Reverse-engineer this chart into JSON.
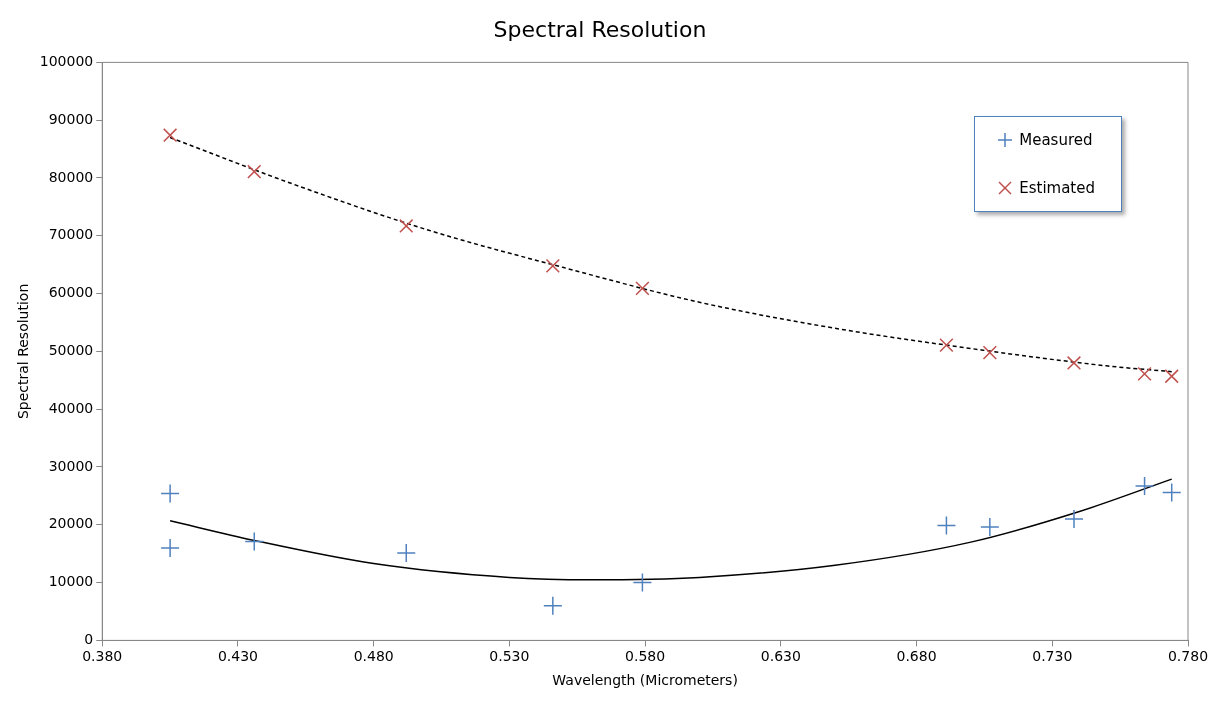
{
  "chart_data": {
    "type": "scatter",
    "title": "Spectral Resolution",
    "xlabel": "Wavelength (Micrometers)",
    "ylabel": "Spectral Resolution",
    "xlim": [
      0.38,
      0.78
    ],
    "xticks": [
      {
        "value": 0.38,
        "label": "0.380"
      },
      {
        "value": 0.43,
        "label": "0.430"
      },
      {
        "value": 0.48,
        "label": "0.480"
      },
      {
        "value": 0.53,
        "label": "0.530"
      },
      {
        "value": 0.58,
        "label": "0.580"
      },
      {
        "value": 0.63,
        "label": "0.630"
      },
      {
        "value": 0.68,
        "label": "0.680"
      },
      {
        "value": 0.73,
        "label": "0.730"
      },
      {
        "value": 0.78,
        "label": "0.780"
      }
    ],
    "ylim": [
      0,
      100000
    ],
    "yticks": [
      0,
      10000,
      20000,
      30000,
      40000,
      50000,
      60000,
      70000,
      80000,
      90000,
      100000
    ],
    "grid": false,
    "legend": "top right",
    "series": [
      {
        "name": "Measured",
        "type": "scatter",
        "marker": "cross",
        "color": "#4f81bd",
        "x": [
          0.405,
          0.405,
          0.436,
          0.492,
          0.546,
          0.579,
          0.691,
          0.707,
          0.738,
          0.764,
          0.774
        ],
        "values": [
          25400,
          16000,
          17100,
          15100,
          6000,
          10000,
          19900,
          19600,
          21000,
          26700,
          25600
        ]
      },
      {
        "name": "Estimated",
        "type": "scatter",
        "marker": "x",
        "color": "#c0504d",
        "x": [
          0.405,
          0.436,
          0.492,
          0.546,
          0.579,
          0.691,
          0.707,
          0.738,
          0.764,
          0.774
        ],
        "values": [
          87400,
          81100,
          71700,
          64800,
          60900,
          51100,
          49800,
          48000,
          46100,
          45700
        ]
      },
      {
        "type": "line",
        "marker": "none",
        "line_style": "solid",
        "color": "#000000",
        "x": [
          0.405,
          0.436,
          0.48,
          0.53,
          0.56,
          0.6,
          0.65,
          0.7,
          0.74,
          0.774
        ],
        "values": [
          20700,
          17300,
          13300,
          10900,
          10500,
          10900,
          13000,
          17000,
          22300,
          27900
        ]
      },
      {
        "type": "line",
        "marker": "none",
        "line_style": "dashed",
        "color": "#000000",
        "x": [
          0.405,
          0.45,
          0.5,
          0.55,
          0.6,
          0.65,
          0.7,
          0.75,
          0.774
        ],
        "values": [
          87000,
          79000,
          71000,
          64500,
          58500,
          54000,
          50500,
          47500,
          46500
        ]
      }
    ]
  }
}
